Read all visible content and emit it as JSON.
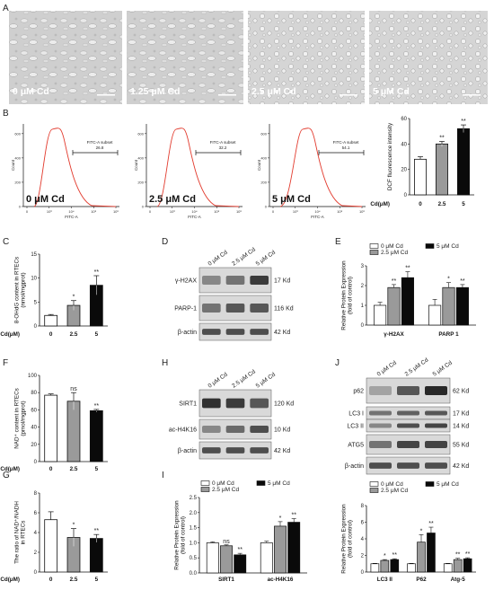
{
  "panel_labels": {
    "A": "A",
    "B": "B",
    "C": "C",
    "D": "D",
    "E": "E",
    "F": "F",
    "G": "G",
    "H": "H",
    "I": "I",
    "J": "J"
  },
  "cd_unit": "Cd(μM)",
  "sig": {
    "ss": "**",
    "s": "*",
    "ns": "ns"
  },
  "micrographs": [
    {
      "label": "0 μM Cd"
    },
    {
      "label": "1.25 μM Cd"
    },
    {
      "label": "2.5 μM Cd"
    },
    {
      "label": "5 μM Cd"
    }
  ],
  "flow": {
    "ylabel": "Count",
    "xlabel": "FITC-A",
    "gate_label": "FITC-A subset",
    "yticks": [
      "0",
      "200",
      "400",
      "600"
    ],
    "xticks": [
      "0",
      "10³",
      "10⁴",
      "10⁵",
      "10⁶"
    ],
    "plots": [
      {
        "label": "0 μM Cd",
        "gate_value": "26.8",
        "peak": 0.27
      },
      {
        "label": "2.5 μM Cd",
        "gate_value": "32.2",
        "peak": 0.32
      },
      {
        "label": "5 μM Cd",
        "gate_value": "54.1",
        "peak": 0.54
      }
    ]
  },
  "blot_D": {
    "lanes": [
      "0 μM Cd",
      "2.5 μM Cd",
      "5 μM Cd"
    ],
    "rows": [
      {
        "name": "γ-H2AX",
        "size": "17 Kd"
      },
      {
        "name": "PARP-1",
        "size": "116 Kd"
      },
      {
        "name": "β-actin",
        "size": "42 Kd"
      }
    ]
  },
  "blot_H": {
    "lanes": [
      "0 μM Cd",
      "2.5 μM Cd",
      "5 μM Cd"
    ],
    "rows": [
      {
        "name": "SIRT1",
        "size": "120 Kd"
      },
      {
        "name": "ac-H4K16",
        "size": "10 Kd"
      },
      {
        "name": "β-actin",
        "size": "42 Kd"
      }
    ]
  },
  "blot_J": {
    "lanes": [
      "0 μM Cd",
      "2.5 μM Cd",
      "5 μM Cd"
    ],
    "rows": [
      {
        "name": "p62",
        "size": "62 Kd"
      },
      {
        "name": "LC3 I",
        "size": "17 Kd"
      },
      {
        "name": "LC3 II",
        "size": "14 Kd"
      },
      {
        "name": "ATG5",
        "size": "55 Kd"
      },
      {
        "name": "β-actin",
        "size": "42 Kd"
      }
    ]
  },
  "legend": [
    "0 μM Cd",
    "2.5 μM Cd",
    "5 μM Cd"
  ],
  "colors": {
    "c0": "#ffffff",
    "c25": "#9a9a9a",
    "c5": "#0a0a0a",
    "flow_line": "#e23b2e",
    "gate": "#111111"
  },
  "chart_data": [
    {
      "id": "B",
      "type": "bar",
      "ylabel": "DCF fluorescence intensity",
      "categories": [
        "0",
        "2.5",
        "5"
      ],
      "values": [
        28,
        40,
        52
      ],
      "errors": [
        2,
        2,
        3
      ],
      "ylim": [
        0,
        60
      ],
      "yticks": [
        0,
        20,
        40,
        60
      ],
      "sig": [
        "",
        "**",
        "**"
      ]
    },
    {
      "id": "C",
      "type": "bar",
      "ylabel": "8-OHdG content in RTECs\n(nmol/mgprot)",
      "categories": [
        "0",
        "2.5",
        "5"
      ],
      "values": [
        2.2,
        4.3,
        8.5
      ],
      "errors": [
        0.2,
        1.0,
        2.0
      ],
      "ylim": [
        0,
        15
      ],
      "yticks": [
        0,
        5,
        10,
        15
      ],
      "sig": [
        "",
        "*",
        "**"
      ]
    },
    {
      "id": "E",
      "type": "bar",
      "ylabel": "Relative Protein Expression\n(fold of control)",
      "categories": [
        "γ-H2AX",
        "PARP 1"
      ],
      "series": [
        {
          "name": "0 μM Cd",
          "values": [
            1.0,
            1.0
          ],
          "errors": [
            0.15,
            0.3
          ]
        },
        {
          "name": "2.5 μM Cd",
          "values": [
            1.9,
            1.9
          ],
          "errors": [
            0.15,
            0.25
          ]
        },
        {
          "name": "5 μM Cd",
          "values": [
            2.4,
            1.9
          ],
          "errors": [
            0.3,
            0.15
          ]
        }
      ],
      "ylim": [
        0,
        3
      ],
      "yticks": [
        0,
        1,
        2,
        3
      ],
      "sig": [
        [
          "",
          "**",
          "**"
        ],
        [
          "",
          "*",
          "**"
        ]
      ]
    },
    {
      "id": "F",
      "type": "bar",
      "ylabel": "NAD⁺ content in RTECs\n(pmol/mgprot)",
      "categories": [
        "0",
        "2.5",
        "5"
      ],
      "values": [
        77,
        70,
        59
      ],
      "errors": [
        1.5,
        10,
        1.5
      ],
      "ylim": [
        0,
        100
      ],
      "yticks": [
        0,
        20,
        40,
        60,
        80,
        100
      ],
      "sig": [
        "",
        "ns",
        "**"
      ]
    },
    {
      "id": "G",
      "type": "bar",
      "ylabel": "The ratio of NAD⁺/NADH\nin RTECs",
      "categories": [
        "0",
        "2.5",
        "5"
      ],
      "values": [
        5.3,
        3.5,
        3.4
      ],
      "errors": [
        0.8,
        0.9,
        0.4
      ],
      "ylim": [
        0,
        8
      ],
      "yticks": [
        0,
        2,
        4,
        6,
        8
      ],
      "sig": [
        "",
        "*",
        "**"
      ]
    },
    {
      "id": "I",
      "type": "bar",
      "ylabel": "Relative Protein Expression\n(fold of control)",
      "categories": [
        "SIRT1",
        "ac-H4K16"
      ],
      "series": [
        {
          "name": "0 μM Cd",
          "values": [
            1.0,
            1.0
          ],
          "errors": [
            0.03,
            0.05
          ]
        },
        {
          "name": "2.5 μM Cd",
          "values": [
            0.9,
            1.55
          ],
          "errors": [
            0.03,
            0.15
          ]
        },
        {
          "name": "5 μM Cd",
          "values": [
            0.6,
            1.68
          ],
          "errors": [
            0.05,
            0.12
          ]
        }
      ],
      "ylim": [
        0,
        2.5
      ],
      "yticks": [
        0.0,
        0.5,
        1.0,
        1.5,
        2.0,
        2.5
      ],
      "sig": [
        [
          "",
          "ns",
          "**"
        ],
        [
          "",
          "*",
          "**"
        ]
      ]
    },
    {
      "id": "J",
      "type": "bar",
      "ylabel": "Relative Protein Expression\n(fold of control)",
      "categories": [
        "LC3 II",
        "P62",
        "Atg-5"
      ],
      "series": [
        {
          "name": "0 μM Cd",
          "values": [
            1.0,
            1.0,
            1.0
          ],
          "errors": [
            0.05,
            0.05,
            0.05
          ]
        },
        {
          "name": "2.5 μM Cd",
          "values": [
            1.4,
            3.6,
            1.5
          ],
          "errors": [
            0.1,
            0.9,
            0.15
          ]
        },
        {
          "name": "5 μM Cd",
          "values": [
            1.5,
            4.7,
            1.6
          ],
          "errors": [
            0.1,
            0.7,
            0.12
          ]
        }
      ],
      "ylim": [
        0,
        8
      ],
      "yticks": [
        0,
        2,
        4,
        6,
        8
      ],
      "sig": [
        [
          "",
          "*",
          "**"
        ],
        [
          "",
          "*",
          "**"
        ],
        [
          "",
          "**",
          "**"
        ]
      ]
    }
  ]
}
